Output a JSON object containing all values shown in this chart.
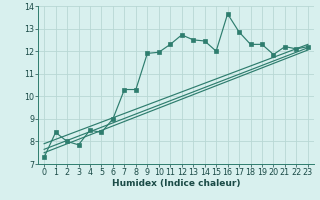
{
  "xlabel": "Humidex (Indice chaleur)",
  "bg_color": "#d8f0ee",
  "line_color": "#2e7d6e",
  "grid_color": "#b8d8d4",
  "xlim": [
    -0.5,
    23.5
  ],
  "ylim": [
    7,
    14
  ],
  "yticks": [
    7,
    8,
    9,
    10,
    11,
    12,
    13,
    14
  ],
  "xticks": [
    0,
    1,
    2,
    3,
    4,
    5,
    6,
    7,
    8,
    9,
    10,
    11,
    12,
    13,
    14,
    15,
    16,
    17,
    18,
    19,
    20,
    21,
    22,
    23
  ],
  "main_line": {
    "x": [
      0,
      1,
      2,
      3,
      4,
      5,
      6,
      7,
      8,
      9,
      10,
      11,
      12,
      13,
      14,
      15,
      16,
      17,
      18,
      19,
      20,
      21,
      22,
      23
    ],
    "y": [
      7.3,
      8.4,
      8.0,
      7.85,
      8.5,
      8.4,
      9.0,
      10.3,
      10.3,
      11.9,
      11.95,
      12.3,
      12.72,
      12.5,
      12.45,
      12.0,
      13.65,
      12.85,
      12.3,
      12.3,
      11.85,
      12.2,
      12.1,
      12.2
    ]
  },
  "straight_lines": [
    {
      "x": [
        0,
        23
      ],
      "y": [
        7.5,
        12.05
      ]
    },
    {
      "x": [
        0,
        23
      ],
      "y": [
        7.65,
        12.15
      ]
    },
    {
      "x": [
        0,
        23
      ],
      "y": [
        7.9,
        12.3
      ]
    }
  ],
  "tick_fontsize": 5.8,
  "xlabel_fontsize": 6.5
}
